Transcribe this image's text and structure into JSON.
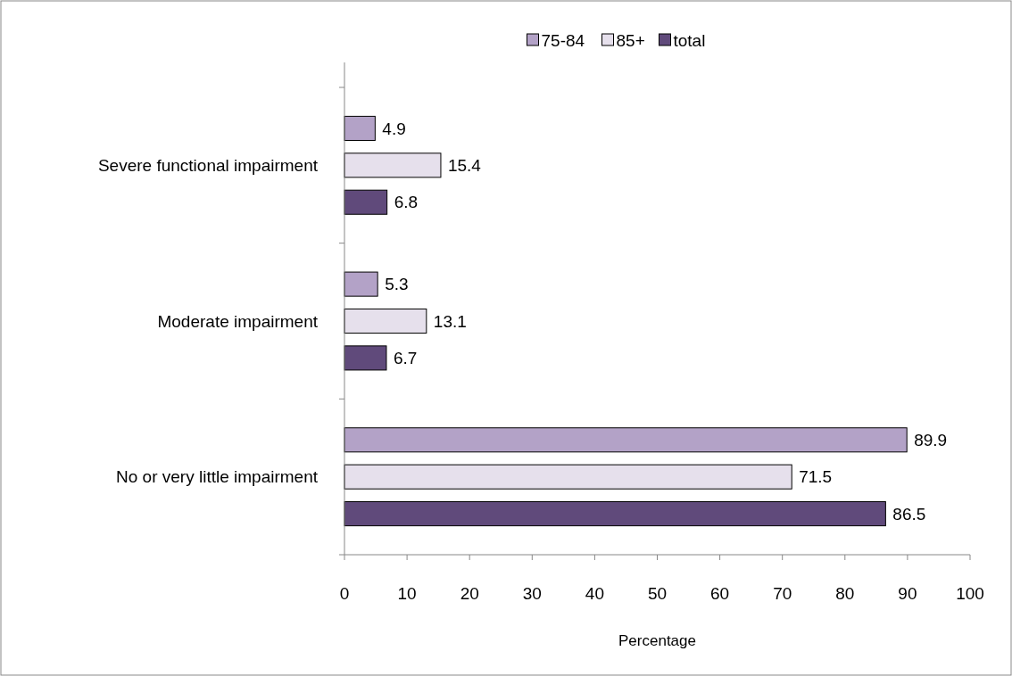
{
  "chart_data": {
    "type": "bar",
    "orientation": "horizontal",
    "categories": [
      "Severe functional impairment",
      "Moderate impairment",
      "No or very little impairment"
    ],
    "series": [
      {
        "name": "75-84",
        "color": "#b3a2c7",
        "values": [
          4.9,
          5.3,
          89.9
        ]
      },
      {
        "name": "85+",
        "color": "#e6e0ec",
        "values": [
          15.4,
          13.1,
          71.5
        ]
      },
      {
        "name": "total",
        "color": "#604a7b",
        "values": [
          6.8,
          6.7,
          86.5
        ]
      }
    ],
    "xlim": [
      0,
      100
    ],
    "xticks": [
      0,
      10,
      20,
      30,
      40,
      50,
      60,
      70,
      80,
      90,
      100
    ],
    "xlabel": "Percentage",
    "data_labels": true,
    "legend": "top",
    "grid": false
  }
}
